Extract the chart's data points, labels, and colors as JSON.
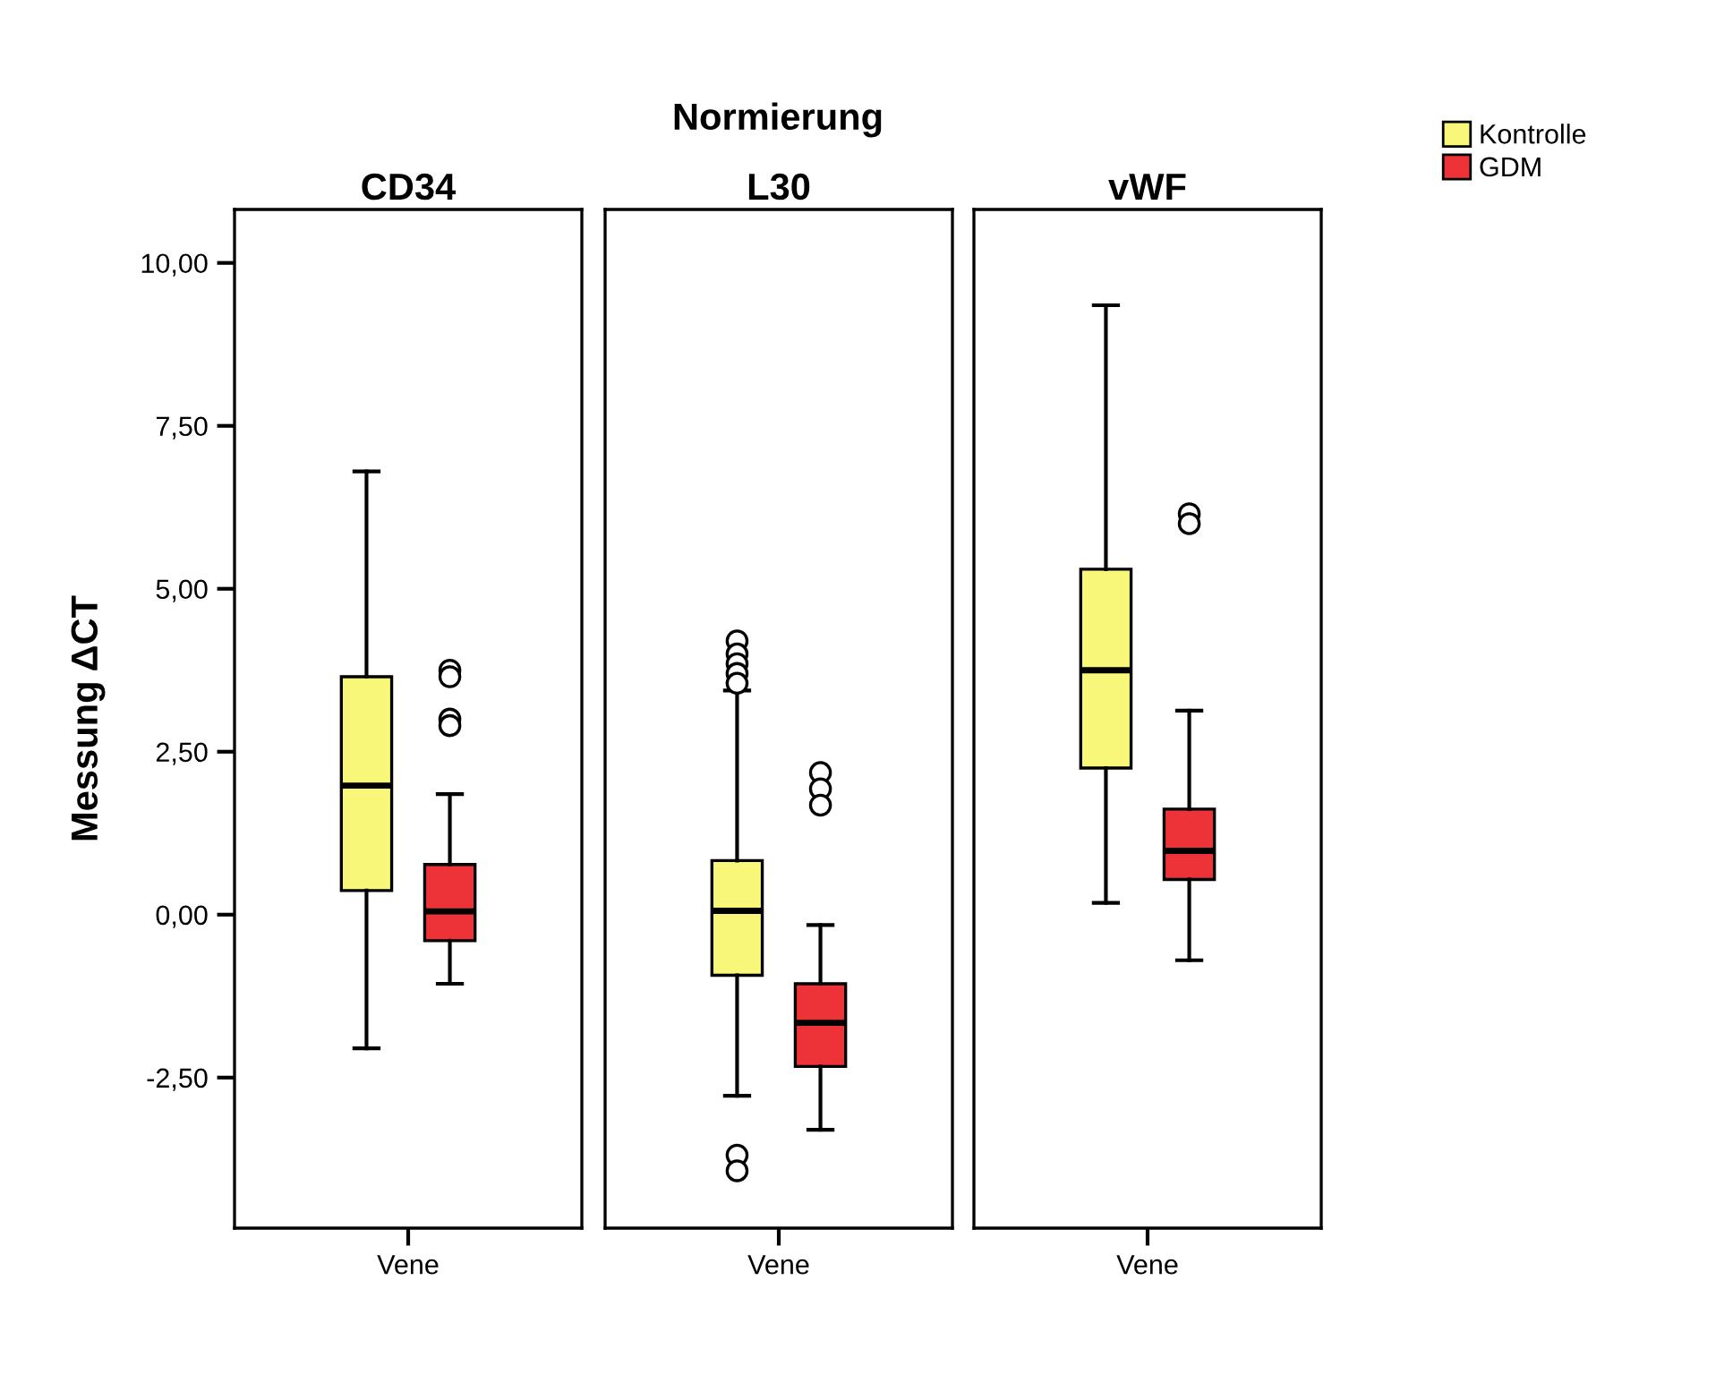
{
  "chart_data": [
    {
      "type": "box",
      "title": "CD34",
      "ylabel": "Messung ΔCT",
      "legend": "top right",
      "annotations": [
        "Normierung"
      ],
      "categories": [
        "Vene"
      ],
      "ylim": [
        -4.81,
        10.82
      ],
      "yticks": [
        {
          "value": -2.5,
          "label": "-2,50"
        },
        {
          "value": 0,
          "label": "0,00"
        },
        {
          "value": 2.5,
          "label": "2,50"
        },
        {
          "value": 5,
          "label": "5,00"
        },
        {
          "value": 7.5,
          "label": "7,50"
        },
        {
          "value": 10,
          "label": "10,00"
        }
      ],
      "grid": false,
      "series": [
        {
          "name": "Kontrolle",
          "color": "#f9f77a",
          "boxes": [
            {
              "low": -2.05,
              "q1": 0.37,
              "median": 1.98,
              "q3": 3.65,
              "high": 6.8
            }
          ]
        },
        {
          "name": "GDM",
          "color": "#ee3338",
          "boxes": [
            {
              "low": -1.06,
              "q1": -0.4,
              "median": 0.05,
              "q3": 0.77,
              "high": 1.85,
              "outliers": [
                3.75,
                3.65,
                3.0,
                2.9
              ]
            }
          ]
        }
      ]
    },
    {
      "type": "box",
      "title": "L30",
      "categories": [
        "Vene"
      ],
      "ylim": [
        -4.81,
        10.82
      ],
      "tick_labels": "x",
      "grid": false,
      "series": [
        {
          "color": "#f9f77a",
          "boxes": [
            {
              "low": -2.78,
              "q1": -0.93,
              "median": 0.06,
              "q3": 0.83,
              "high": 3.44,
              "outliers": [
                4.2,
                4.0,
                3.85,
                3.7,
                3.55,
                -3.69,
                -3.93
              ]
            }
          ]
        },
        {
          "color": "#ee3338",
          "boxes": [
            {
              "low": -3.3,
              "q1": -2.33,
              "median": -1.66,
              "q3": -1.06,
              "high": -0.16,
              "outliers": [
                2.18,
                1.93,
                1.68
              ]
            }
          ]
        }
      ]
    },
    {
      "type": "box",
      "title": "vWF",
      "categories": [
        "Vene"
      ],
      "ylim": [
        -4.81,
        10.82
      ],
      "tick_labels": "x",
      "grid": false,
      "series": [
        {
          "color": "#f9f77a",
          "boxes": [
            {
              "low": 0.18,
              "q1": 2.25,
              "median": 3.75,
              "q3": 5.3,
              "high": 9.35
            }
          ]
        },
        {
          "color": "#ee3338",
          "boxes": [
            {
              "low": -0.7,
              "q1": 0.54,
              "median": 0.98,
              "q3": 1.62,
              "high": 3.13,
              "outliers": [
                6.15,
                6.0
              ]
            }
          ]
        }
      ]
    }
  ]
}
